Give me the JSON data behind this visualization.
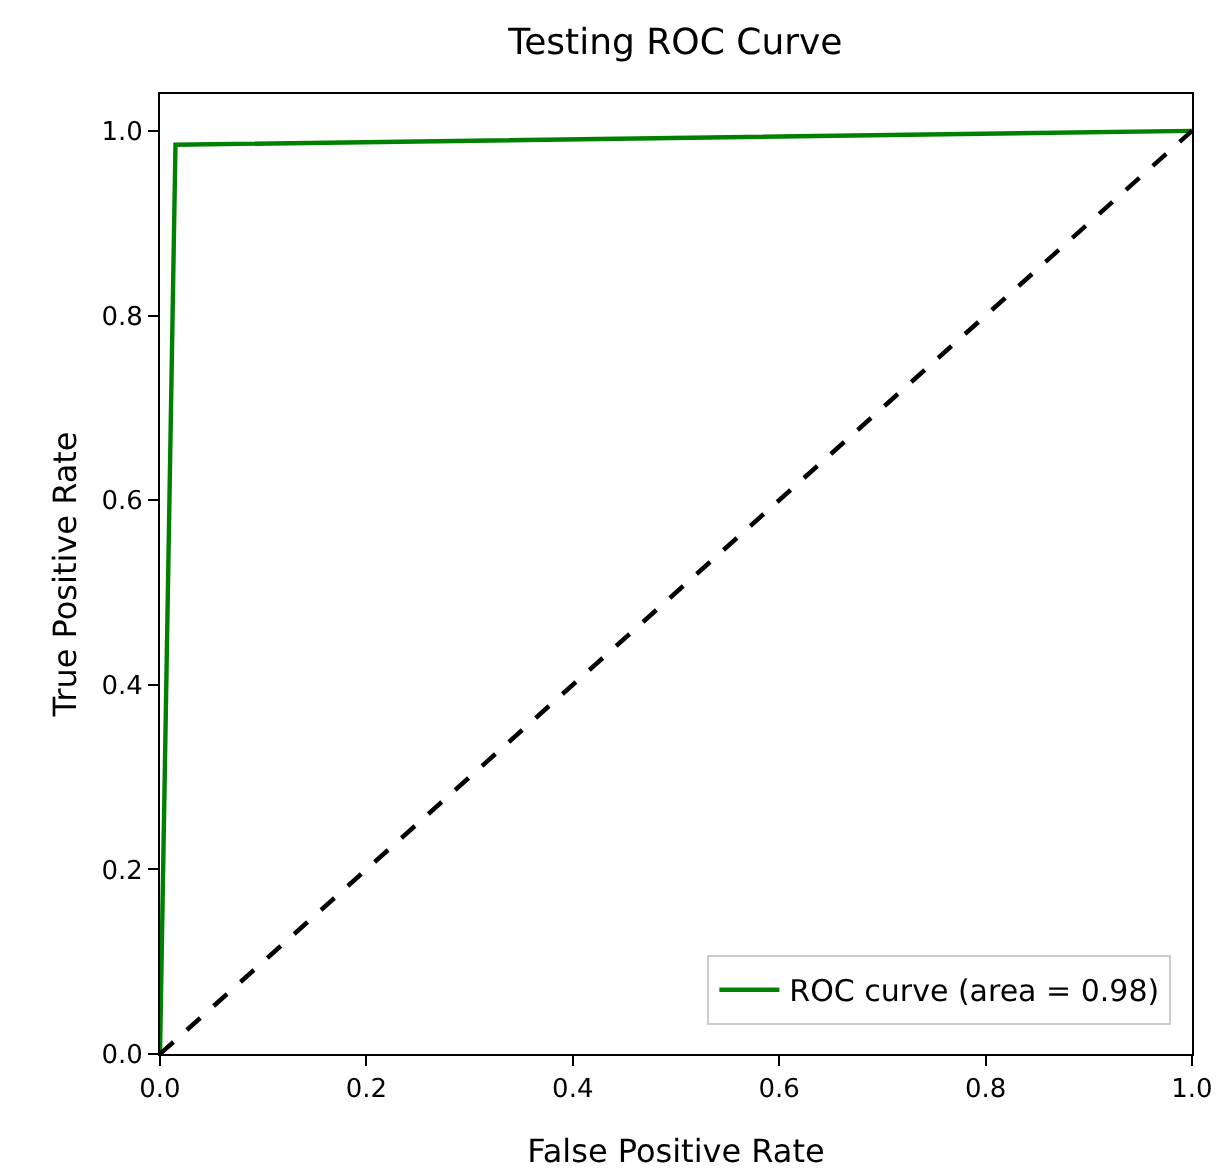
{
  "chart_data": {
    "type": "line",
    "title": "Testing ROC Curve",
    "xlabel": "False Positive Rate",
    "ylabel": "True Positive Rate",
    "xlim": [
      0,
      1
    ],
    "ylim": [
      0,
      1.04
    ],
    "xticks": [
      {
        "value": 0,
        "label": "0.0"
      },
      {
        "value": 0.2,
        "label": "0.2"
      },
      {
        "value": 0.4,
        "label": "0.4"
      },
      {
        "value": 0.6,
        "label": "0.6"
      },
      {
        "value": 0.8,
        "label": "0.8"
      },
      {
        "value": 1,
        "label": "1.0"
      }
    ],
    "yticks": [
      {
        "value": 0,
        "label": "0.0"
      },
      {
        "value": 0.2,
        "label": "0.2"
      },
      {
        "value": 0.4,
        "label": "0.4"
      },
      {
        "value": 0.6,
        "label": "0.6"
      },
      {
        "value": 0.8,
        "label": "0.8"
      },
      {
        "value": 1,
        "label": "1.0"
      }
    ],
    "grid": false,
    "legend": "bottom right",
    "marker": "none",
    "series": [
      {
        "name": "ROC curve (area = 0.98)",
        "color": "#008000",
        "x": [
          0,
          0.015,
          1
        ],
        "values": [
          0,
          0.985,
          1
        ],
        "line_style": "solid"
      },
      {
        "color": "#000000",
        "x": [
          0,
          1
        ],
        "values": [
          0,
          1
        ],
        "line_style": "dashed"
      }
    ]
  }
}
